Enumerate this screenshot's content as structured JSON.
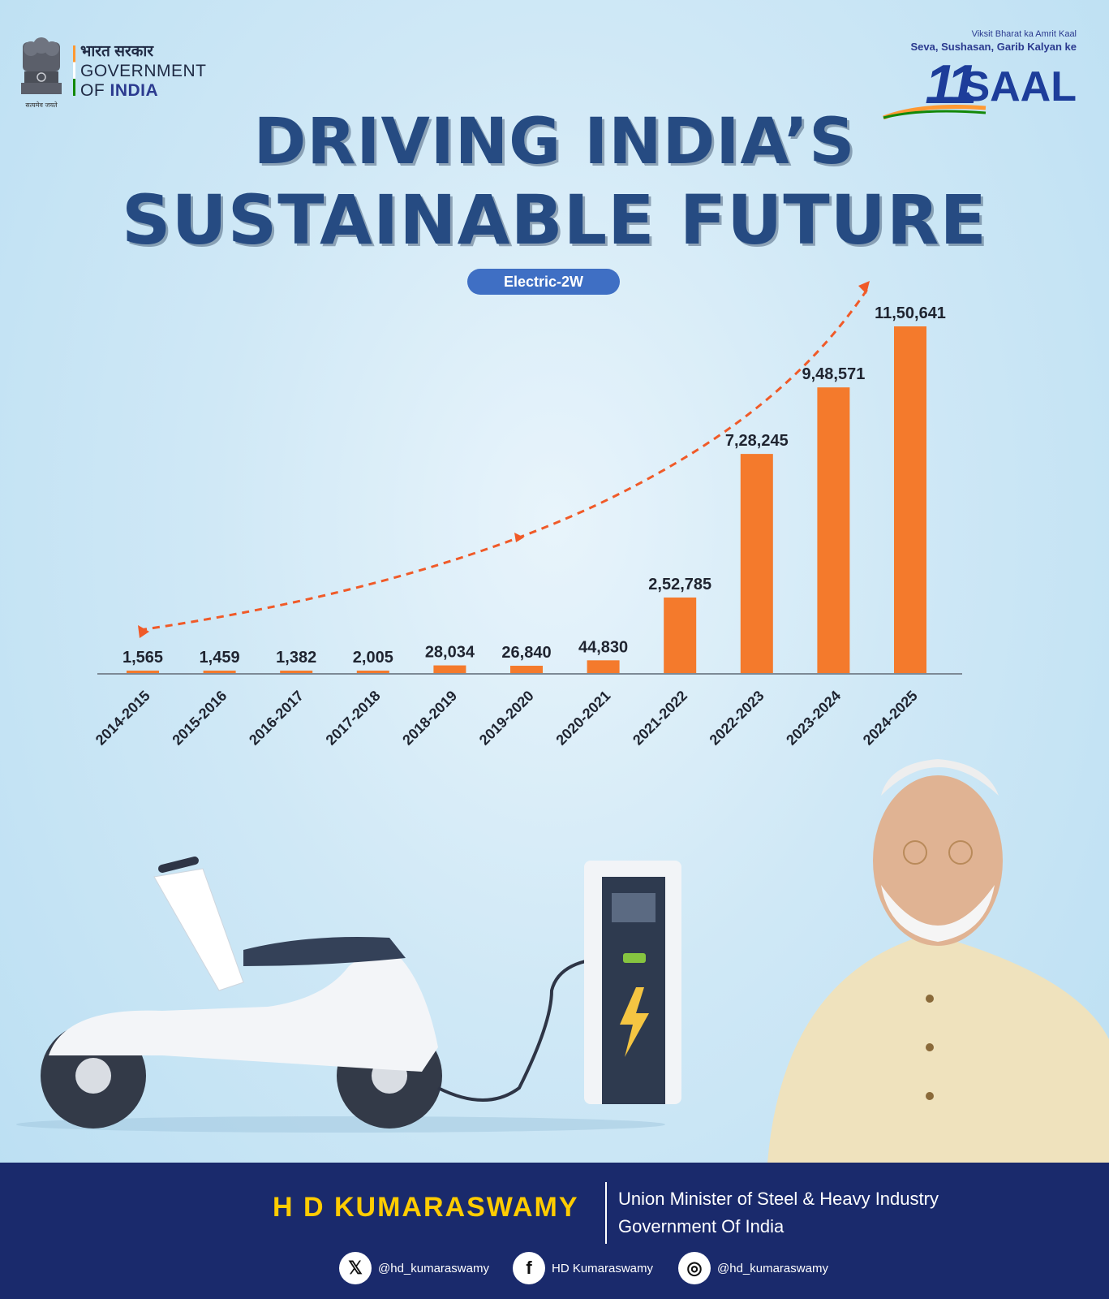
{
  "header": {
    "gov_hindi": "भारत सरकार",
    "gov_line1": "GOVERNMENT",
    "gov_line2_prefix": "OF ",
    "gov_line2_bold": "INDIA",
    "emblem_motto": "सत्यमेव जयते",
    "badge_small": "Viksit Bharat ka Amrit Kaal",
    "badge_mid": "Seva, Sushasan, Garib Kalyan ke",
    "badge_number": "11",
    "badge_word": "SAAL"
  },
  "headline": {
    "line1": "DRIVING INDIA’S",
    "line2": "SUSTAINABLE FUTURE"
  },
  "category_pill": "Electric-2W",
  "chart_data": {
    "type": "bar",
    "categories": [
      "2014-2015",
      "2015-2016",
      "2016-2017",
      "2017-2018",
      "2018-2019",
      "2019-2020",
      "2020-2021",
      "2021-2022",
      "2022-2023",
      "2023-2024",
      "2024-2025"
    ],
    "values": [
      1565,
      1459,
      1382,
      2005,
      28034,
      26840,
      44830,
      252785,
      728245,
      948571,
      1150641
    ],
    "value_labels": [
      "1,565",
      "1,459",
      "1,382",
      "2,005",
      "28,034",
      "26,840",
      "44,830",
      "2,52,785",
      "7,28,245",
      "9,48,571",
      "11,50,641"
    ],
    "bar_color": "#f47a2c",
    "trend_color": "#f05a28",
    "ylim": [
      0,
      1150641
    ]
  },
  "footer": {
    "name": "H D KUMARASWAMY",
    "role_line1": "Union Minister of Steel & Heavy Industry",
    "role_line2": "Government Of India",
    "social": [
      {
        "icon": "x-icon",
        "glyph": "𝕏",
        "handle": "@hd_kumaraswamy"
      },
      {
        "icon": "facebook-icon",
        "glyph": "f",
        "handle": "HD Kumaraswamy"
      },
      {
        "icon": "instagram-icon",
        "glyph": "◎",
        "handle": "@hd_kumaraswamy"
      }
    ]
  }
}
